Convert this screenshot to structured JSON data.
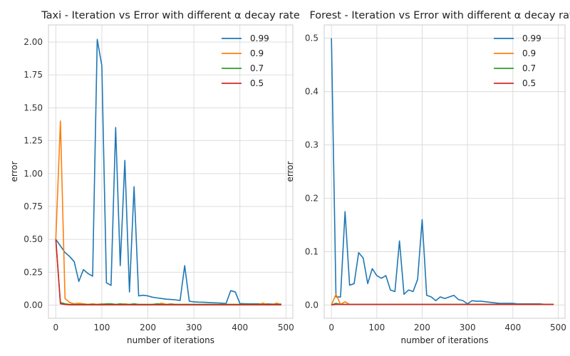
{
  "chart_data": [
    {
      "type": "line",
      "title": "Taxi - Iteration vs Error with different α decay rate",
      "xlabel": "number of iterations",
      "ylabel": "error",
      "xlim": [
        -16,
        515
      ],
      "ylim": [
        -0.1,
        2.13
      ],
      "xticks": [
        0,
        100,
        200,
        300,
        400,
        500
      ],
      "yticks": [
        0.0,
        0.25,
        0.5,
        0.75,
        1.0,
        1.25,
        1.5,
        1.75,
        2.0
      ],
      "ytick_labels": [
        "0.00",
        "0.25",
        "0.50",
        "0.75",
        "1.00",
        "1.25",
        "1.50",
        "1.75",
        "2.00"
      ],
      "grid": true,
      "legend_placement": "top-right",
      "series": [
        {
          "name": "0.99",
          "color": "#1f77b4",
          "x": [
            0,
            10,
            20,
            30,
            40,
            50,
            60,
            70,
            80,
            90,
            100,
            110,
            120,
            130,
            140,
            150,
            160,
            170,
            180,
            190,
            200,
            210,
            220,
            230,
            240,
            250,
            260,
            270,
            280,
            290,
            300,
            310,
            320,
            330,
            340,
            350,
            360,
            370,
            380,
            390,
            400,
            410,
            420,
            430,
            440,
            450,
            460,
            470,
            480,
            490
          ],
          "y": [
            0.5,
            0.45,
            0.4,
            0.37,
            0.33,
            0.18,
            0.27,
            0.24,
            0.22,
            2.02,
            1.82,
            0.17,
            0.15,
            1.35,
            0.3,
            1.1,
            0.1,
            0.9,
            0.07,
            0.075,
            0.07,
            0.06,
            0.055,
            0.05,
            0.045,
            0.043,
            0.04,
            0.035,
            0.3,
            0.03,
            0.025,
            0.023,
            0.022,
            0.02,
            0.018,
            0.017,
            0.015,
            0.013,
            0.11,
            0.1,
            0.012,
            0.011,
            0.01,
            0.01,
            0.01,
            0.009,
            0.009,
            0.008,
            0.008,
            0.008
          ]
        },
        {
          "name": "0.9",
          "color": "#ff7f0e",
          "x": [
            0,
            10,
            20,
            30,
            40,
            50,
            60,
            70,
            80,
            90,
            100,
            110,
            120,
            130,
            140,
            150,
            160,
            170,
            180,
            190,
            200,
            210,
            220,
            230,
            240,
            250,
            260,
            270,
            280,
            290,
            300,
            310,
            320,
            330,
            340,
            350,
            360,
            370,
            380,
            390,
            400,
            410,
            420,
            430,
            440,
            450,
            460,
            470,
            480,
            490
          ],
          "y": [
            0.5,
            1.4,
            0.05,
            0.02,
            0.01,
            0.015,
            0.01,
            0.005,
            0.01,
            0.005,
            0.01,
            0.005,
            0.01,
            0.005,
            0.005,
            0.01,
            0.005,
            0.005,
            0.005,
            0.005,
            0.005,
            0.005,
            0.005,
            0.015,
            0.005,
            0.01,
            0.005,
            0.005,
            0.005,
            0.005,
            0.005,
            0.005,
            0.005,
            0.005,
            0.005,
            0.005,
            0.005,
            0.005,
            0.005,
            0.005,
            0.005,
            0.005,
            0.005,
            0.005,
            0.005,
            0.015,
            0.005,
            0.005,
            0.015,
            0.005
          ]
        },
        {
          "name": "0.7",
          "color": "#2ca02c",
          "x": [
            0,
            10,
            20,
            30,
            40,
            50,
            60,
            70,
            80,
            90,
            100,
            110,
            120,
            130,
            140,
            150,
            160,
            170,
            180,
            190,
            200,
            210,
            220,
            230,
            240,
            250,
            260,
            270,
            280,
            290,
            300,
            310,
            320,
            330,
            340,
            350,
            360,
            370,
            380,
            390,
            400,
            410,
            420,
            430,
            440,
            450,
            460,
            470,
            480,
            490
          ],
          "y": [
            0.5,
            0.02,
            0.01,
            0.005,
            0.005,
            0.005,
            0.005,
            0.005,
            0.005,
            0.005,
            0.005,
            0.01,
            0.01,
            0.005,
            0.01,
            0.005,
            0.005,
            0.01,
            0.005,
            0.005,
            0.005,
            0.005,
            0.01,
            0.005,
            0.005,
            0.005,
            0.005,
            0.005,
            0.005,
            0.005,
            0.005,
            0.005,
            0.005,
            0.005,
            0.005,
            0.005,
            0.005,
            0.005,
            0.005,
            0.005,
            0.005,
            0.005,
            0.005,
            0.005,
            0.005,
            0.005,
            0.005,
            0.005,
            0.005,
            0.005
          ]
        },
        {
          "name": "0.5",
          "color": "#d62728",
          "x": [
            0,
            10,
            20,
            30,
            40,
            50,
            60,
            70,
            80,
            90,
            100,
            110,
            120,
            130,
            140,
            150,
            160,
            170,
            180,
            190,
            200,
            210,
            220,
            230,
            240,
            250,
            260,
            270,
            280,
            290,
            300,
            310,
            320,
            330,
            340,
            350,
            360,
            370,
            380,
            390,
            400,
            410,
            420,
            430,
            440,
            450,
            460,
            470,
            480,
            490
          ],
          "y": [
            0.5,
            0.01,
            0.005,
            0.002,
            0.002,
            0.002,
            0.002,
            0.002,
            0.002,
            0.002,
            0.002,
            0.002,
            0.002,
            0.002,
            0.002,
            0.002,
            0.002,
            0.002,
            0.002,
            0.002,
            0.002,
            0.002,
            0.002,
            0.002,
            0.002,
            0.002,
            0.002,
            0.002,
            0.002,
            0.002,
            0.002,
            0.002,
            0.002,
            0.002,
            0.002,
            0.002,
            0.002,
            0.002,
            0.002,
            0.002,
            0.002,
            0.002,
            0.002,
            0.002,
            0.002,
            0.002,
            0.002,
            0.002,
            0.002,
            0.002
          ]
        }
      ]
    },
    {
      "type": "line",
      "title": "Forest - Iteration vs Error with different α decay rate",
      "xlabel": "number of iterations",
      "ylabel": "error",
      "xlim": [
        -16,
        515
      ],
      "ylim": [
        -0.025,
        0.525
      ],
      "xticks": [
        0,
        100,
        200,
        300,
        400,
        500
      ],
      "yticks": [
        0.0,
        0.1,
        0.2,
        0.3,
        0.4,
        0.5
      ],
      "ytick_labels": [
        "0.0",
        "0.1",
        "0.2",
        "0.3",
        "0.4",
        "0.5"
      ],
      "grid": true,
      "legend_placement": "top-right",
      "series": [
        {
          "name": "0.99",
          "color": "#1f77b4",
          "x": [
            0,
            10,
            20,
            30,
            40,
            50,
            60,
            70,
            80,
            90,
            100,
            110,
            120,
            130,
            140,
            150,
            160,
            170,
            180,
            190,
            200,
            210,
            220,
            230,
            240,
            250,
            260,
            270,
            280,
            290,
            300,
            310,
            320,
            330,
            340,
            350,
            360,
            370,
            380,
            390,
            400,
            410,
            420,
            430,
            440,
            450,
            460,
            470,
            480,
            490
          ],
          "y": [
            0.5,
            0.015,
            0.015,
            0.175,
            0.037,
            0.04,
            0.098,
            0.088,
            0.04,
            0.068,
            0.055,
            0.05,
            0.055,
            0.028,
            0.025,
            0.12,
            0.02,
            0.028,
            0.025,
            0.048,
            0.16,
            0.018,
            0.015,
            0.008,
            0.015,
            0.012,
            0.015,
            0.018,
            0.01,
            0.008,
            0.002,
            0.008,
            0.007,
            0.007,
            0.006,
            0.005,
            0.004,
            0.003,
            0.003,
            0.003,
            0.003,
            0.002,
            0.002,
            0.002,
            0.002,
            0.002,
            0.002,
            0.001,
            0.001,
            0.001
          ]
        },
        {
          "name": "0.9",
          "color": "#ff7f0e",
          "x": [
            0,
            10,
            20,
            30,
            40,
            50,
            60,
            70,
            80,
            90,
            100,
            110,
            120,
            130,
            140,
            150,
            160,
            170,
            180,
            190,
            200,
            210,
            220,
            230,
            240,
            250,
            260,
            270,
            280,
            290,
            300,
            310,
            320,
            330,
            340,
            350,
            360,
            370,
            380,
            390,
            400,
            410,
            420,
            430,
            440,
            450,
            460,
            470,
            480,
            490
          ],
          "y": [
            0.0,
            0.02,
            0.001,
            0.006,
            0.001,
            0.001,
            0.001,
            0.001,
            0.001,
            0.001,
            0.001,
            0.001,
            0.001,
            0.001,
            0.001,
            0.001,
            0.001,
            0.001,
            0.001,
            0.001,
            0.001,
            0.001,
            0.001,
            0.001,
            0.001,
            0.001,
            0.001,
            0.001,
            0.001,
            0.001,
            0.001,
            0.001,
            0.001,
            0.001,
            0.001,
            0.001,
            0.001,
            0.001,
            0.001,
            0.001,
            0.001,
            0.001,
            0.001,
            0.001,
            0.001,
            0.001,
            0.001,
            0.001,
            0.001,
            0.001
          ]
        },
        {
          "name": "0.7",
          "color": "#2ca02c",
          "x": [
            0,
            10,
            20,
            30,
            40,
            50,
            60,
            70,
            80,
            90,
            100,
            110,
            120,
            130,
            140,
            150,
            160,
            170,
            180,
            190,
            200,
            210,
            220,
            230,
            240,
            250,
            260,
            270,
            280,
            290,
            300,
            310,
            320,
            330,
            340,
            350,
            360,
            370,
            380,
            390,
            400,
            410,
            420,
            430,
            440,
            450,
            460,
            470,
            480,
            490
          ],
          "y": [
            0.0,
            0.003,
            0.001,
            0.001,
            0.001,
            0.001,
            0.001,
            0.001,
            0.001,
            0.001,
            0.001,
            0.001,
            0.001,
            0.001,
            0.001,
            0.001,
            0.001,
            0.001,
            0.001,
            0.001,
            0.001,
            0.001,
            0.001,
            0.001,
            0.001,
            0.001,
            0.001,
            0.001,
            0.001,
            0.001,
            0.001,
            0.001,
            0.001,
            0.001,
            0.001,
            0.001,
            0.001,
            0.001,
            0.001,
            0.001,
            0.001,
            0.001,
            0.001,
            0.001,
            0.001,
            0.001,
            0.001,
            0.001,
            0.001,
            0.001
          ]
        },
        {
          "name": "0.5",
          "color": "#d62728",
          "x": [
            0,
            10,
            20,
            30,
            40,
            50,
            60,
            70,
            80,
            90,
            100,
            110,
            120,
            130,
            140,
            150,
            160,
            170,
            180,
            190,
            200,
            210,
            220,
            230,
            240,
            250,
            260,
            270,
            280,
            290,
            300,
            310,
            320,
            330,
            340,
            350,
            360,
            370,
            380,
            390,
            400,
            410,
            420,
            430,
            440,
            450,
            460,
            470,
            480,
            490
          ],
          "y": [
            0.0,
            0.001,
            0.001,
            0.001,
            0.001,
            0.001,
            0.001,
            0.001,
            0.001,
            0.001,
            0.001,
            0.001,
            0.001,
            0.001,
            0.001,
            0.001,
            0.001,
            0.001,
            0.001,
            0.001,
            0.001,
            0.001,
            0.001,
            0.001,
            0.001,
            0.001,
            0.001,
            0.001,
            0.001,
            0.001,
            0.001,
            0.001,
            0.001,
            0.001,
            0.001,
            0.001,
            0.001,
            0.001,
            0.001,
            0.001,
            0.001,
            0.001,
            0.001,
            0.001,
            0.001,
            0.001,
            0.001,
            0.001,
            0.001,
            0.001
          ]
        }
      ]
    }
  ]
}
